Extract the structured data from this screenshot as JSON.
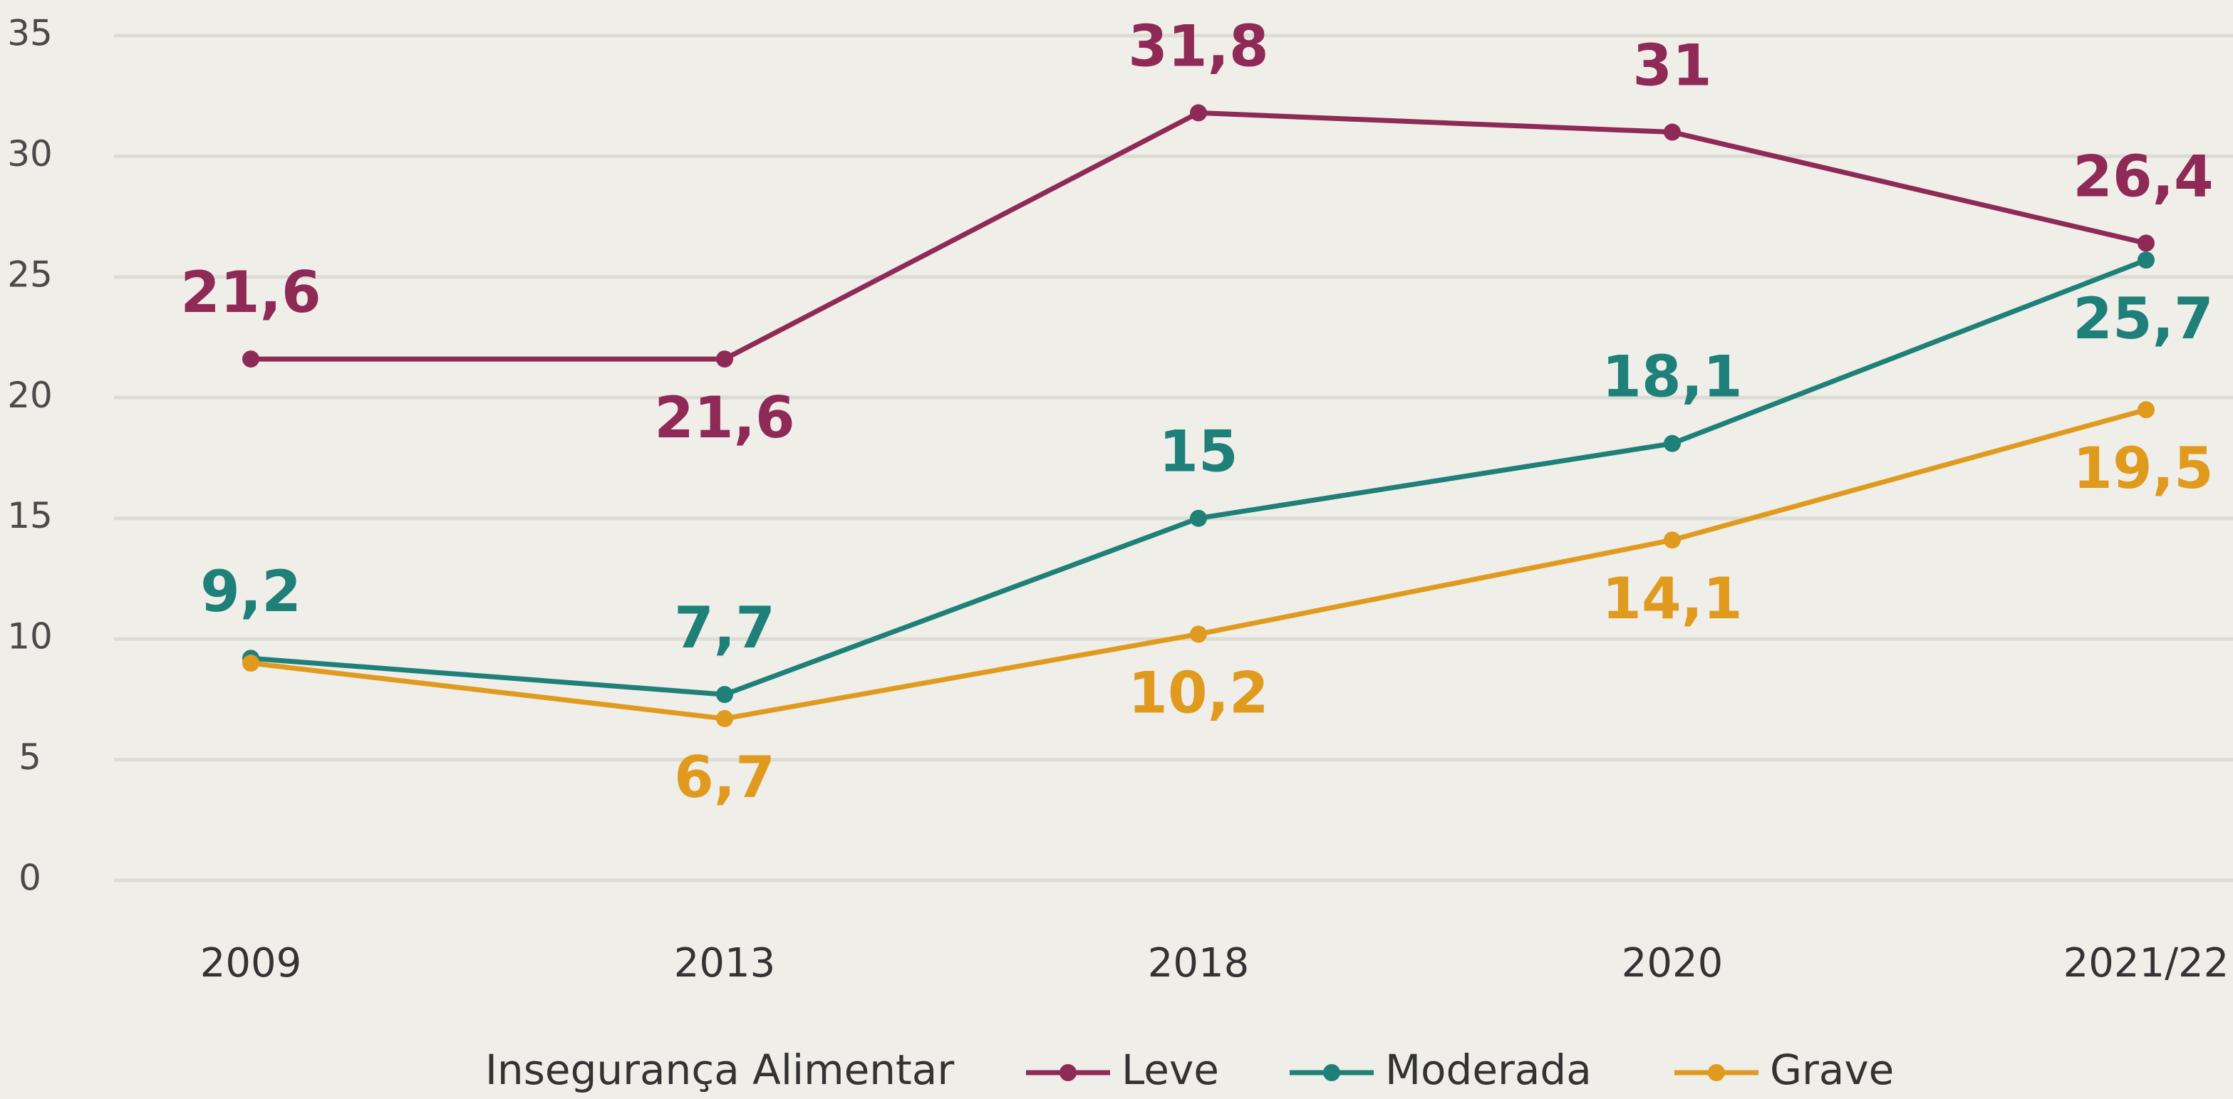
{
  "chart_data": {
    "type": "line",
    "categories": [
      "2009",
      "2013",
      "2018",
      "2020",
      "2021/22"
    ],
    "series": [
      {
        "name": "Leve",
        "color": "#8e2a55",
        "values": [
          21.6,
          21.6,
          31.8,
          31,
          26.4
        ],
        "value_labels": [
          "21,6",
          "21,6",
          "31,8",
          "31",
          "26,4"
        ]
      },
      {
        "name": "Moderada",
        "color": "#1f8079",
        "values": [
          9.2,
          7.7,
          15,
          18.1,
          25.7
        ],
        "value_labels": [
          "9,2",
          "7,7",
          "15",
          "18,1",
          "25,7"
        ]
      },
      {
        "name": "Grave",
        "color": "#e09b1f",
        "values": [
          9,
          6.7,
          10.2,
          14.1,
          19.5
        ],
        "value_labels": [
          null,
          "6,7",
          "10,2",
          "14,1",
          "19,5"
        ]
      }
    ],
    "ylim": [
      0,
      35
    ],
    "yticks": [
      0,
      5,
      10,
      15,
      20,
      25,
      30,
      35
    ],
    "grid": true,
    "legend_title": "Insegurança Alimentar",
    "legend": "bottom"
  }
}
